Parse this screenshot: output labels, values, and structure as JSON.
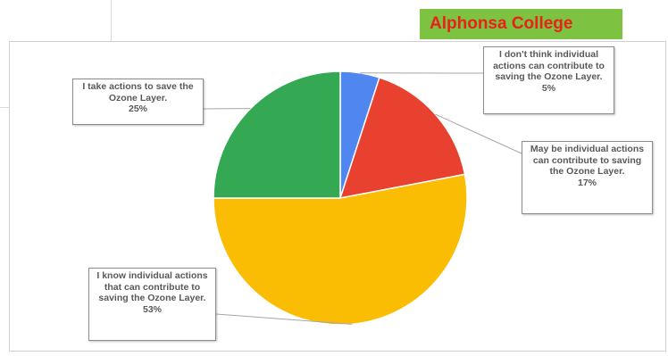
{
  "header": {
    "college_name": "Alphonsa College"
  },
  "colors": {
    "banner_bg": "#7dc241",
    "banner_text": "#e8221b"
  },
  "chart_data": {
    "type": "pie",
    "slices": [
      {
        "label": "I don't think individual actions can contribute to saving the Ozone Layer.",
        "value": 5,
        "value_label": "5%",
        "color": "#4f86f0"
      },
      {
        "label": "May be individual actions can contribute to saving the Ozone Layer.",
        "value": 17,
        "value_label": "17%",
        "color": "#e8412f"
      },
      {
        "label": "I know individual actions that can contribute to saving the Ozone Layer.",
        "value": 53,
        "value_label": "53%",
        "color": "#fbbc04"
      },
      {
        "label": "I take actions to save the Ozone Layer.",
        "value": 25,
        "value_label": "25%",
        "color": "#34a853"
      }
    ],
    "start_angle": "12 o'clock",
    "direction": "clockwise",
    "labels_placement": "callouts"
  }
}
